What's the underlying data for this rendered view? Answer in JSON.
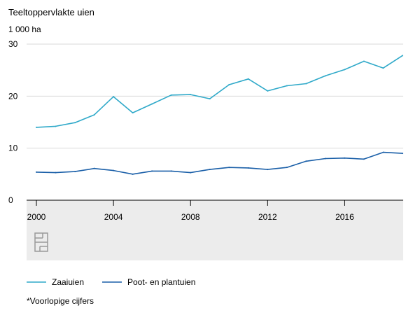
{
  "chart_data": {
    "type": "line",
    "title": "Teeltoppervlakte uien",
    "unit_label": "1 000 ha",
    "x": [
      2000,
      2001,
      2002,
      2003,
      2004,
      2005,
      2006,
      2007,
      2008,
      2009,
      2010,
      2011,
      2012,
      2013,
      2014,
      2015,
      2016,
      2017,
      2018,
      2019
    ],
    "x_ticks": [
      "2000",
      "2004",
      "2008",
      "2012",
      "2016"
    ],
    "y_ticks": [
      "0",
      "10",
      "20",
      "30"
    ],
    "xlim": [
      2000,
      2019
    ],
    "ylim": [
      0,
      30
    ],
    "grid": true,
    "legend_position": "bottom",
    "series": [
      {
        "name": "Zaaiuien",
        "color": "#2fa9c9",
        "values": [
          14.0,
          14.2,
          14.9,
          16.4,
          19.9,
          16.8,
          18.5,
          20.2,
          20.3,
          19.5,
          22.2,
          23.3,
          21.0,
          22.0,
          22.4,
          23.9,
          25.1,
          26.7,
          25.4,
          27.8
        ]
      },
      {
        "name": "Poot- en plantuien",
        "color": "#1a5fa8",
        "values": [
          5.4,
          5.3,
          5.5,
          6.1,
          5.7,
          5.0,
          5.6,
          5.6,
          5.3,
          5.9,
          6.3,
          6.2,
          5.9,
          6.3,
          7.5,
          8.0,
          8.1,
          7.9,
          9.2,
          9.0
        ]
      }
    ],
    "footnote": "*Voorlopige cijfers"
  },
  "logo": {
    "name": "cbs-logo-icon",
    "color": "#9a9a9a"
  },
  "colors": {
    "band": "#ececec",
    "grid": "#d9d9d9",
    "axis": "#000000"
  }
}
